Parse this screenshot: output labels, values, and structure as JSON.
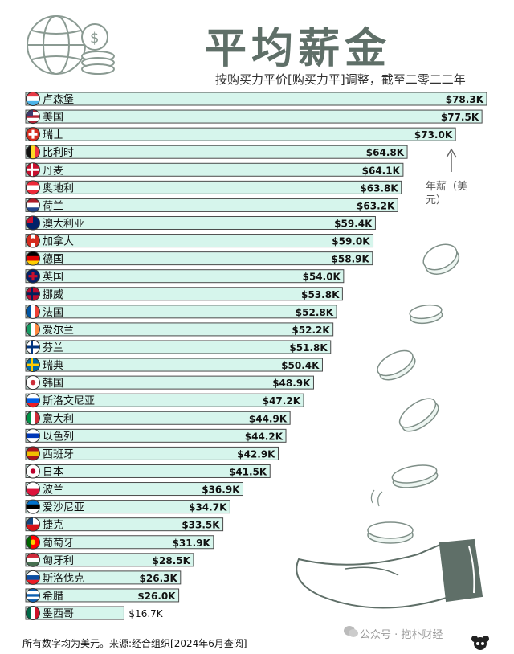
{
  "header": {
    "title": "平均薪金",
    "subtitle": "按购买力平价[购买力平]调整，截至二零二二年"
  },
  "axis_note": "年薪（美元）",
  "footer": {
    "source": "所有数字均为美元。来源:经合组织[2024年6月查阅]",
    "watermark": "公众号 · 抱朴财经"
  },
  "colors": {
    "bar_fill": "#d6f5ec",
    "bar_stroke": "#4a4a4a",
    "title": "#5f6f68"
  },
  "chart_data": {
    "type": "bar",
    "orientation": "horizontal",
    "title": "平均薪金",
    "subtitle": "按购买力平价[购买力平]调整，截至二零二二年",
    "xlabel": "年薪（美元）",
    "ylabel": "",
    "xlim": [
      0,
      78300
    ],
    "grid": false,
    "categories": [
      "卢森堡",
      "美国",
      "瑞士",
      "比利时",
      "丹麦",
      "奥地利",
      "荷兰",
      "澳大利亚",
      "加拿大",
      "德国",
      "英国",
      "挪威",
      "法国",
      "爱尔兰",
      "芬兰",
      "瑞典",
      "韩国",
      "斯洛文尼亚",
      "意大利",
      "以色列",
      "西班牙",
      "日本",
      "波兰",
      "爱沙尼亚",
      "捷克",
      "葡萄牙",
      "匈牙利",
      "斯洛伐克",
      "希腊",
      "墨西哥"
    ],
    "values": [
      78300,
      77500,
      73000,
      64800,
      64100,
      63800,
      63200,
      59400,
      59000,
      58900,
      54000,
      53800,
      52800,
      52200,
      51800,
      50400,
      48900,
      47200,
      44900,
      44200,
      42900,
      41500,
      36900,
      34700,
      33500,
      31900,
      28500,
      26300,
      26000,
      16700
    ],
    "labels": [
      "$78.3K",
      "$77.5K",
      "$73.0K",
      "$64.8K",
      "$64.1K",
      "$63.8K",
      "$63.2K",
      "$59.4K",
      "$59.0K",
      "$58.9K",
      "$54.0K",
      "$53.8K",
      "$52.8K",
      "$52.2K",
      "$51.8K",
      "$50.4K",
      "$48.9K",
      "$47.2K",
      "$44.9K",
      "$44.2K",
      "$42.9K",
      "$41.5K",
      "$36.9K",
      "$34.7K",
      "$33.5K",
      "$31.9K",
      "$28.5K",
      "$26.3K",
      "$26.0K",
      "$16.7K"
    ],
    "flags": [
      "luxembourg-flag-icon",
      "usa-flag-icon",
      "switzerland-flag-icon",
      "belgium-flag-icon",
      "denmark-flag-icon",
      "austria-flag-icon",
      "netherlands-flag-icon",
      "australia-flag-icon",
      "canada-flag-icon",
      "germany-flag-icon",
      "uk-flag-icon",
      "norway-flag-icon",
      "france-flag-icon",
      "ireland-flag-icon",
      "finland-flag-icon",
      "sweden-flag-icon",
      "korea-flag-icon",
      "slovenia-flag-icon",
      "italy-flag-icon",
      "israel-flag-icon",
      "spain-flag-icon",
      "japan-flag-icon",
      "poland-flag-icon",
      "estonia-flag-icon",
      "czechia-flag-icon",
      "portugal-flag-icon",
      "hungary-flag-icon",
      "slovakia-flag-icon",
      "greece-flag-icon",
      "mexico-flag-icon"
    ]
  }
}
